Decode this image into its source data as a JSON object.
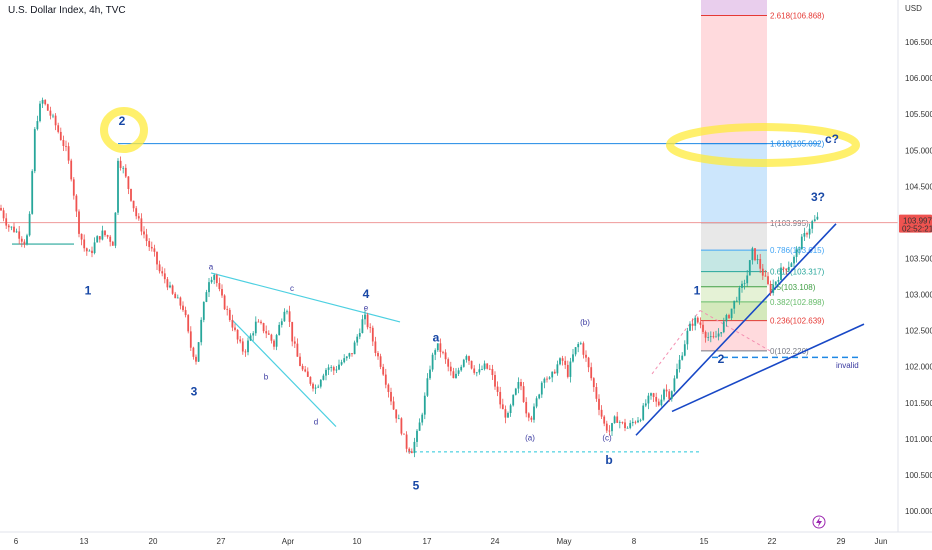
{
  "header": {
    "symbol_title": "U.S. Dollar Index, 4h, TVC"
  },
  "chart_data": {
    "type": "candlestick",
    "title": "U.S. Dollar Index, 4h, TVC",
    "currency_label": "USD",
    "y_ticks": [
      100.0,
      100.5,
      101.0,
      101.5,
      102.0,
      102.5,
      103.0,
      103.5,
      104.0,
      104.5,
      105.0,
      105.5,
      106.0,
      106.5
    ],
    "y_tick_labels": [
      "100.000",
      "100.500",
      "101.000",
      "101.500",
      "102.000",
      "102.500",
      "103.000",
      "103.500",
      "104.000",
      "104.500",
      "105.000",
      "105.500",
      "106.000",
      "106.500"
    ],
    "x_tick_labels": [
      "6",
      "13",
      "20",
      "27",
      "Apr",
      "10",
      "17",
      "24",
      "May",
      "8",
      "15",
      "22",
      "29",
      "Jun"
    ],
    "last_price": "103.997",
    "countdown": "02:52:21",
    "close_path": [
      [
        0,
        104.2
      ],
      [
        8,
        103.95
      ],
      [
        14,
        103.9
      ],
      [
        18,
        103.85
      ],
      [
        26,
        103.7
      ],
      [
        30,
        104.1
      ],
      [
        34,
        105.2
      ],
      [
        38,
        105.5
      ],
      [
        42,
        105.7
      ],
      [
        48,
        105.55
      ],
      [
        54,
        105.4
      ],
      [
        60,
        105.2
      ],
      [
        66,
        105.0
      ],
      [
        72,
        104.6
      ],
      [
        78,
        103.95
      ],
      [
        84,
        103.65
      ],
      [
        90,
        103.55
      ],
      [
        96,
        103.75
      ],
      [
        102,
        103.85
      ],
      [
        108,
        103.8
      ],
      [
        114,
        103.7
      ],
      [
        118,
        104.9
      ],
      [
        124,
        104.7
      ],
      [
        130,
        104.4
      ],
      [
        136,
        104.1
      ],
      [
        142,
        103.9
      ],
      [
        148,
        103.7
      ],
      [
        154,
        103.55
      ],
      [
        160,
        103.3
      ],
      [
        166,
        103.2
      ],
      [
        172,
        103.0
      ],
      [
        178,
        102.9
      ],
      [
        184,
        102.8
      ],
      [
        190,
        102.3
      ],
      [
        196,
        102.1
      ],
      [
        202,
        102.7
      ],
      [
        208,
        103.2
      ],
      [
        214,
        103.3
      ],
      [
        220,
        103.0
      ],
      [
        226,
        102.8
      ],
      [
        232,
        102.6
      ],
      [
        238,
        102.35
      ],
      [
        244,
        102.2
      ],
      [
        250,
        102.4
      ],
      [
        256,
        102.6
      ],
      [
        262,
        102.55
      ],
      [
        268,
        102.45
      ],
      [
        274,
        102.3
      ],
      [
        280,
        102.6
      ],
      [
        286,
        102.9
      ],
      [
        292,
        102.4
      ],
      [
        298,
        102.1
      ],
      [
        304,
        101.9
      ],
      [
        310,
        101.8
      ],
      [
        316,
        101.7
      ],
      [
        322,
        101.9
      ],
      [
        328,
        102.0
      ],
      [
        334,
        101.95
      ],
      [
        340,
        102.05
      ],
      [
        346,
        102.1
      ],
      [
        352,
        102.2
      ],
      [
        358,
        102.45
      ],
      [
        364,
        102.7
      ],
      [
        370,
        102.5
      ],
      [
        376,
        102.2
      ],
      [
        382,
        102.0
      ],
      [
        388,
        101.7
      ],
      [
        394,
        101.4
      ],
      [
        400,
        101.2
      ],
      [
        406,
        100.9
      ],
      [
        412,
        100.85
      ],
      [
        418,
        101.1
      ],
      [
        424,
        101.5
      ],
      [
        430,
        102.0
      ],
      [
        436,
        102.3
      ],
      [
        442,
        102.2
      ],
      [
        448,
        102.0
      ],
      [
        454,
        101.8
      ],
      [
        460,
        102.0
      ],
      [
        466,
        102.2
      ],
      [
        472,
        102.0
      ],
      [
        478,
        101.9
      ],
      [
        484,
        102.0
      ],
      [
        490,
        101.95
      ],
      [
        496,
        101.7
      ],
      [
        502,
        101.4
      ],
      [
        508,
        101.3
      ],
      [
        514,
        101.6
      ],
      [
        520,
        101.8
      ],
      [
        526,
        101.4
      ],
      [
        532,
        101.3
      ],
      [
        538,
        101.6
      ],
      [
        544,
        101.9
      ],
      [
        550,
        101.8
      ],
      [
        556,
        102.0
      ],
      [
        562,
        102.1
      ],
      [
        568,
        101.9
      ],
      [
        574,
        102.2
      ],
      [
        580,
        102.35
      ],
      [
        586,
        102.1
      ],
      [
        592,
        101.8
      ],
      [
        598,
        101.5
      ],
      [
        604,
        101.2
      ],
      [
        610,
        101.1
      ],
      [
        616,
        101.3
      ],
      [
        622,
        101.2
      ],
      [
        628,
        101.15
      ],
      [
        634,
        101.25
      ],
      [
        640,
        101.3
      ],
      [
        646,
        101.5
      ],
      [
        652,
        101.6
      ],
      [
        658,
        101.45
      ],
      [
        664,
        101.7
      ],
      [
        670,
        101.6
      ],
      [
        676,
        101.9
      ],
      [
        682,
        102.2
      ],
      [
        688,
        102.5
      ],
      [
        694,
        102.65
      ],
      [
        700,
        102.6
      ],
      [
        706,
        102.45
      ],
      [
        712,
        102.35
      ],
      [
        718,
        102.45
      ],
      [
        724,
        102.6
      ],
      [
        730,
        102.75
      ],
      [
        736,
        102.95
      ],
      [
        742,
        103.1
      ],
      [
        748,
        103.3
      ],
      [
        752,
        103.6
      ],
      [
        758,
        103.45
      ],
      [
        764,
        103.25
      ],
      [
        770,
        103.05
      ],
      [
        776,
        103.2
      ],
      [
        782,
        103.35
      ],
      [
        788,
        103.4
      ],
      [
        794,
        103.5
      ],
      [
        800,
        103.7
      ],
      [
        806,
        103.85
      ],
      [
        812,
        104.0
      ],
      [
        818,
        104.05
      ],
      [
        820,
        103.997
      ]
    ],
    "fibonacci": {
      "levels": [
        {
          "ratio": "2.618",
          "price": "106.868",
          "label": "2.618(106.868)",
          "color": "#e53935"
        },
        {
          "ratio": "1.618",
          "price": "105.092",
          "label": "1.618(105.092)",
          "color": "#1e88e5"
        },
        {
          "ratio": "1",
          "price": "103.995",
          "label": "1(103.995)",
          "color": "#787b86"
        },
        {
          "ratio": "0.786",
          "price": "103.615",
          "label": "0.786(103.615)",
          "color": "#42a5f5"
        },
        {
          "ratio": "0.618",
          "price": "103.317",
          "label": "0.618(103.317)",
          "color": "#26a69a"
        },
        {
          "ratio": "0.5",
          "price": "103.108",
          "label": "0.5(103.108)",
          "color": "#43a047"
        },
        {
          "ratio": "0.382",
          "price": "102.898",
          "label": "0.382(102.898)",
          "color": "#66bb6a"
        },
        {
          "ratio": "0.236",
          "price": "102.639",
          "label": "0.236(102.639)",
          "color": "#e53935"
        },
        {
          "ratio": "0",
          "price": "102.220",
          "label": "0(102.220)",
          "color": "#787b86"
        }
      ]
    },
    "wave_labels_major": [
      {
        "text": "1",
        "x": 88,
        "y": 103.0
      },
      {
        "text": "2",
        "x": 122,
        "y": 105.35
      },
      {
        "text": "3",
        "x": 194,
        "y": 101.6
      },
      {
        "text": "4",
        "x": 366,
        "y": 102.95
      },
      {
        "text": "5",
        "x": 416,
        "y": 100.3
      }
    ],
    "wave_labels_minor": [
      {
        "text": "a",
        "x": 211,
        "y": 103.35
      },
      {
        "text": "b",
        "x": 266,
        "y": 101.82
      },
      {
        "text": "c",
        "x": 292,
        "y": 103.05
      },
      {
        "text": "d",
        "x": 316,
        "y": 101.2
      },
      {
        "text": "e",
        "x": 366,
        "y": 102.78
      }
    ],
    "wave_labels_abc": [
      {
        "text": "a",
        "x": 436,
        "y": 102.35,
        "big": false
      },
      {
        "text": "(a)",
        "x": 530,
        "y": 100.98,
        "big": false
      },
      {
        "text": "(b)",
        "x": 585,
        "y": 102.58,
        "big": false
      },
      {
        "text": "(c)",
        "x": 607,
        "y": 100.98,
        "big": false
      },
      {
        "text": "b",
        "x": 609,
        "y": 100.65,
        "big": false
      },
      {
        "text": "1",
        "x": 697,
        "y": 103.0,
        "big": false
      },
      {
        "text": "2",
        "x": 721,
        "y": 102.05,
        "big": false
      },
      {
        "text": "3?",
        "x": 818,
        "y": 104.3,
        "big": false
      },
      {
        "text": "c?",
        "x": 832,
        "y": 105.1,
        "big": false
      }
    ],
    "annotations": {
      "invalid_label": "invalid",
      "invalid_price": 102.13,
      "wave5_low_price": 100.82
    },
    "grid": false,
    "last_price_color": "#ef5350"
  }
}
